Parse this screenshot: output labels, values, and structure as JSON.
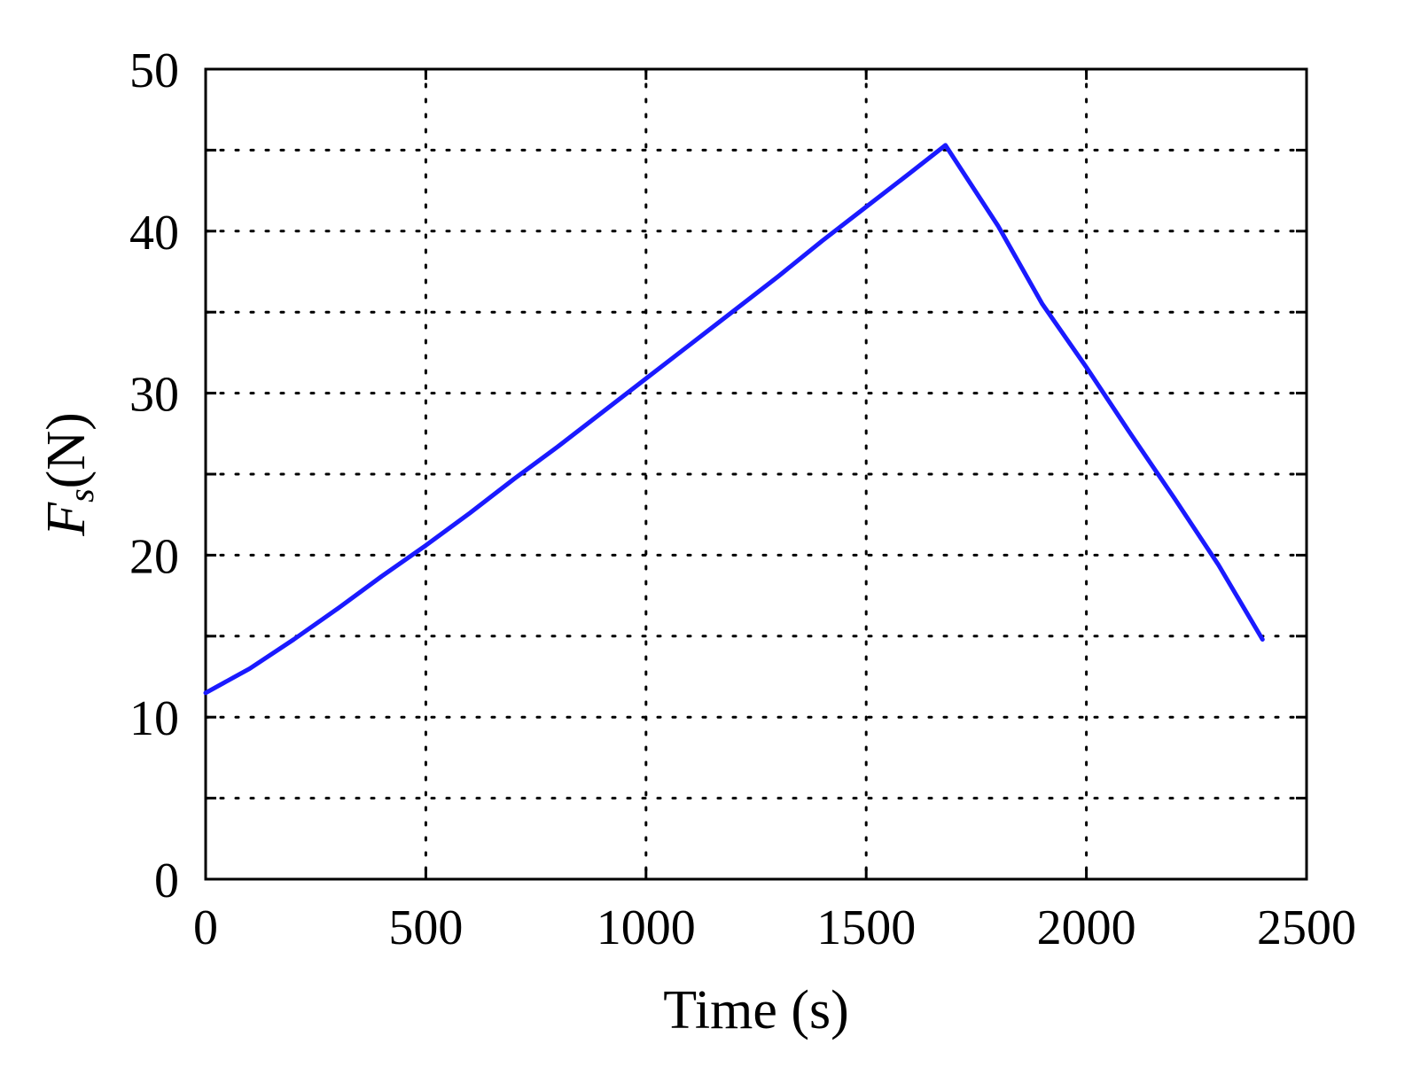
{
  "chart_data": {
    "type": "line",
    "title": "",
    "xlabel": "Time (s)",
    "ylabel": {
      "main": "F",
      "sub": "s",
      "unit": "(N)"
    },
    "xlim": [
      0,
      2500
    ],
    "ylim": [
      0,
      50
    ],
    "xticks": [
      0,
      500,
      1000,
      1500,
      2000,
      2500
    ],
    "yticks": [
      0,
      10,
      20,
      30,
      40,
      50
    ],
    "ygrid_extra": [
      5,
      15,
      25,
      35,
      45
    ],
    "grid": true,
    "grid_style": "dotted",
    "colors": {
      "series": "#1a1aff",
      "axis": "#000000",
      "grid": "#000000"
    },
    "series": [
      {
        "x": [
          0,
          100,
          200,
          300,
          400,
          500,
          600,
          700,
          800,
          900,
          1000,
          1100,
          1200,
          1300,
          1400,
          1500,
          1600,
          1680,
          1800,
          1900,
          2000,
          2100,
          2200,
          2300,
          2400
        ],
        "y": [
          11.5,
          13.0,
          14.8,
          16.7,
          18.7,
          20.6,
          22.6,
          24.7,
          26.7,
          28.8,
          30.9,
          33.0,
          35.1,
          37.2,
          39.4,
          41.5,
          43.6,
          45.3,
          40.3,
          35.5,
          31.6,
          27.5,
          23.5,
          19.4,
          14.8
        ]
      }
    ]
  }
}
